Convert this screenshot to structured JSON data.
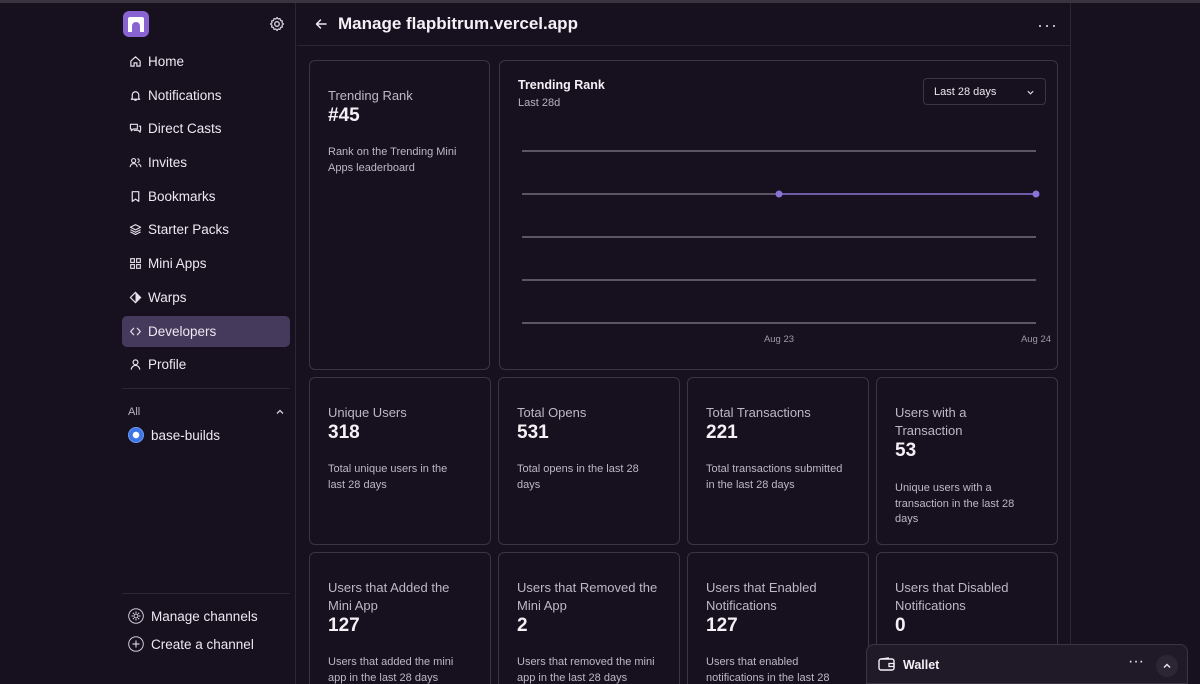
{
  "header": {
    "title": "Manage flapbitrum.vercel.app"
  },
  "sidebar": {
    "items": [
      {
        "label": "Home",
        "icon": "home-icon"
      },
      {
        "label": "Notifications",
        "icon": "bell-icon"
      },
      {
        "label": "Direct Casts",
        "icon": "chat-bubbles-icon"
      },
      {
        "label": "Invites",
        "icon": "users-icon"
      },
      {
        "label": "Bookmarks",
        "icon": "bookmark-icon"
      },
      {
        "label": "Starter Packs",
        "icon": "layers-icon"
      },
      {
        "label": "Mini Apps",
        "icon": "grid-icon"
      },
      {
        "label": "Warps",
        "icon": "diamond-icon"
      },
      {
        "label": "Developers",
        "icon": "code-icon",
        "active": true
      },
      {
        "label": "Profile",
        "icon": "person-icon"
      }
    ],
    "channels_label": "All",
    "channels": [
      {
        "label": "base-builds"
      }
    ],
    "manage_channels": "Manage channels",
    "create_channel": "Create a channel"
  },
  "trending_card": {
    "label": "Trending Rank",
    "value": "#45",
    "desc_line1": "Rank on the Trending Mini",
    "desc_line2": "Apps leaderboard"
  },
  "chart": {
    "title": "Trending Rank",
    "subtitle": "Last 28d",
    "range_option": "Last 28 days"
  },
  "chart_data": {
    "type": "line",
    "title": "Trending Rank",
    "subtitle": "Last 28d",
    "x": [
      "Aug 23",
      "Aug 24"
    ],
    "series": [
      {
        "values": [
          45,
          45
        ]
      }
    ],
    "grid": true,
    "gridlines": 5,
    "line_color": "#8a73d6"
  },
  "stats_row1": [
    {
      "label_line1": "Unique Users",
      "value": "318",
      "desc_line1": "Total unique users in the",
      "desc_line2": "last 28 days"
    },
    {
      "label_line1": "Total Opens",
      "value": "531",
      "desc_line1": "Total opens in the last 28",
      "desc_line2": "days"
    },
    {
      "label_line1": "Total Transactions",
      "value": "221",
      "desc_line1": "Total transactions submitted",
      "desc_line2": "in the last 28 days"
    },
    {
      "label_line1": "Users with a",
      "label_line2": "Transaction",
      "value": "53",
      "desc_line1": "Unique users with a",
      "desc_line2": "transaction in the last 28",
      "desc_line3": "days"
    }
  ],
  "stats_row2": [
    {
      "label_line1": "Users that Added the",
      "label_line2": "Mini App",
      "value": "127",
      "desc_line1": "Users that added the mini",
      "desc_line2": "app in the last 28 days"
    },
    {
      "label_line1": "Users that Removed the",
      "label_line2": "Mini App",
      "value": "2",
      "desc_line1": "Users that removed the mini",
      "desc_line2": "app in the last 28 days"
    },
    {
      "label_line1": "Users that Enabled",
      "label_line2": "Notifications",
      "value": "127",
      "desc_line1": "Users that enabled",
      "desc_line2": "notifications in the last 28"
    },
    {
      "label_line1": "Users that Disabled",
      "label_line2": "Notifications",
      "value": "0"
    }
  ],
  "wallet": {
    "label": "Wallet"
  },
  "colors": {
    "background": "#17101f",
    "accent": "#8a63d2",
    "active_nav": "#463a5c",
    "border": "#3a3443"
  }
}
